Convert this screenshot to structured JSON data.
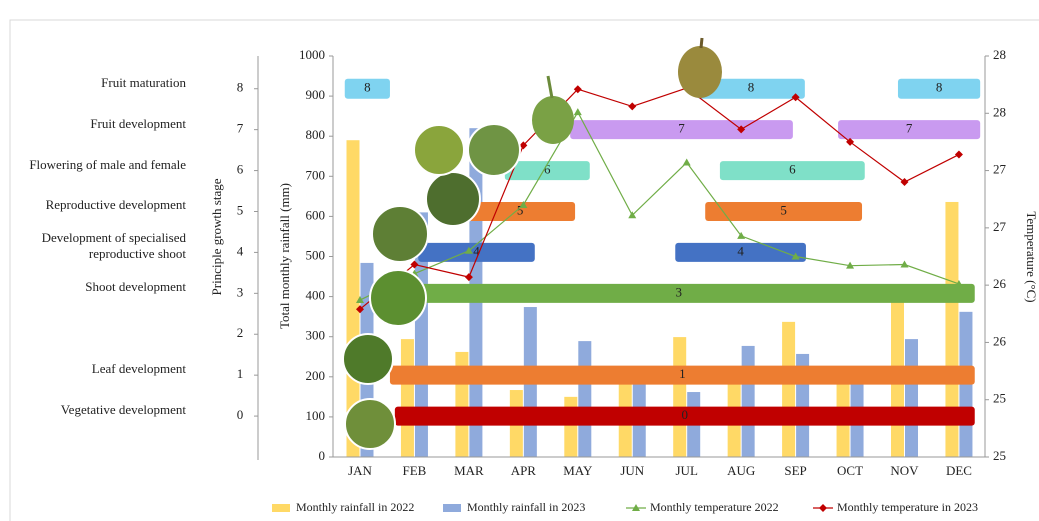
{
  "chart_data": {
    "type": "combo",
    "categories": [
      "JAN",
      "FEB",
      "MAR",
      "APR",
      "MAY",
      "JUN",
      "JUL",
      "AUG",
      "SEP",
      "OCT",
      "NOV",
      "DEC"
    ],
    "ylabel": "Total monthly rainfall (mm)",
    "ylim": [
      0,
      1000
    ],
    "yticks": [
      0,
      100,
      200,
      300,
      400,
      500,
      600,
      700,
      800,
      900,
      1000
    ],
    "y2label": "Temperature (°C)",
    "y2lim": [
      25,
      28.5
    ],
    "y2ticks": [
      25,
      {
        "value": 25.5,
        "label": "25"
      },
      26,
      {
        "value": 26.5,
        "label": "26"
      },
      27,
      {
        "value": 27.5,
        "label": "27"
      },
      28,
      {
        "value": 28.5,
        "label": "28"
      }
    ],
    "stage_label": "Principle growth stage",
    "stage_lim": [
      -1,
      8.8
    ],
    "series": [
      {
        "name": "Monthly rainfall in 2022",
        "type": "bar",
        "color": "#ffd966",
        "values": [
          790,
          294,
          262,
          167,
          150,
          200,
          299,
          220,
          337,
          200,
          392,
          636
        ]
      },
      {
        "name": "Monthly rainfall in 2023",
        "type": "bar",
        "color": "#8faadc",
        "values": [
          484,
          610,
          820,
          374,
          289,
          182,
          162,
          277,
          257,
          200,
          294,
          362
        ]
      },
      {
        "name": "Monthly temperature 2022",
        "type": "line",
        "marker": "triangle",
        "axis": "y2",
        "color": "#70ad47",
        "values": [
          26.37,
          26.6,
          26.8,
          27.2,
          28.01,
          27.11,
          27.57,
          26.93,
          26.75,
          26.67,
          26.68,
          26.51
        ]
      },
      {
        "name": "Monthly temperature in 2023",
        "type": "line",
        "marker": "diamond",
        "axis": "y2",
        "color": "#c00000",
        "values": [
          26.29,
          26.68,
          26.57,
          27.72,
          28.21,
          28.06,
          28.22,
          27.86,
          28.14,
          27.75,
          27.4,
          27.64
        ]
      }
    ],
    "stages": [
      {
        "value": 0,
        "name": "Vegetative development",
        "color": "#c00000",
        "spans": [
          [
            0.64,
            11.29
          ]
        ]
      },
      {
        "value": 1,
        "name": "Leaf development",
        "color": "#ed7d31",
        "spans": [
          [
            0.55,
            11.29
          ]
        ]
      },
      {
        "value": 2,
        "name": null,
        "color": "#999999",
        "spans": []
      },
      {
        "value": 3,
        "name": "Shoot development",
        "color": "#70ad47",
        "spans": [
          [
            0.42,
            11.29
          ]
        ]
      },
      {
        "value": 4,
        "name": "Development of specialised reproductive shoot",
        "color": "#4472c4",
        "spans": [
          [
            1.07,
            3.21
          ],
          [
            5.79,
            8.19
          ]
        ]
      },
      {
        "value": 5,
        "name": "Reproductive development",
        "color": "#ed7d31",
        "spans": [
          [
            1.93,
            3.95
          ],
          [
            6.34,
            9.22
          ]
        ]
      },
      {
        "value": 6,
        "name": "Flowering of male and female",
        "color": "#7fe0c8",
        "spans": [
          [
            2.66,
            4.22
          ],
          [
            6.61,
            9.27
          ]
        ]
      },
      {
        "value": 7,
        "name": "Fruit development",
        "color": "#c99af0",
        "spans": [
          [
            3.86,
            7.95
          ],
          [
            8.78,
            11.39
          ]
        ]
      },
      {
        "value": 8,
        "name": "Fruit maturation",
        "color": "#7fd3f0",
        "spans": [
          [
            -0.28,
            0.55
          ],
          [
            6.19,
            8.17
          ],
          [
            9.88,
            11.39
          ]
        ]
      }
    ]
  }
}
